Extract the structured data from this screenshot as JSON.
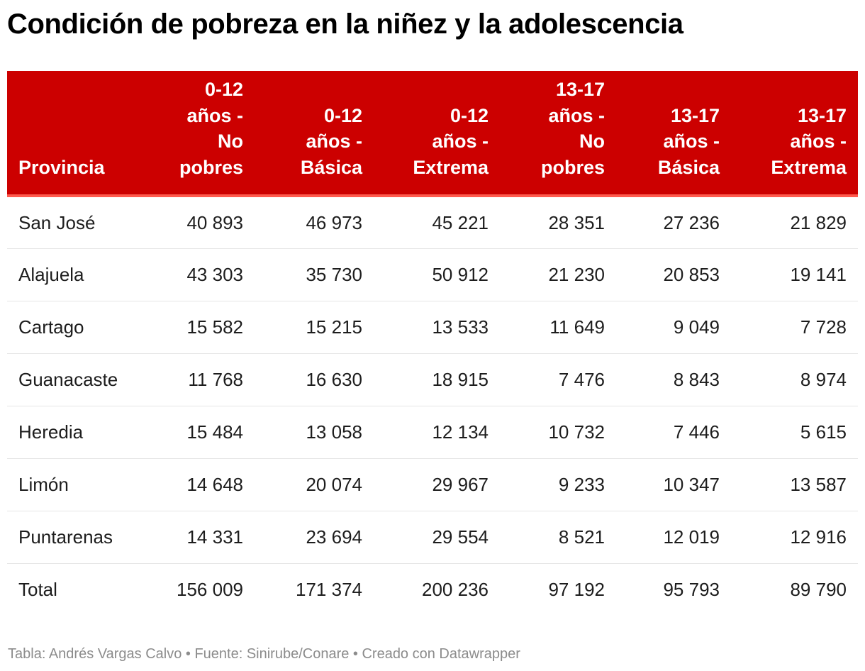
{
  "title": "Condición de pobreza en la niñez y la adolescencia",
  "colors": {
    "header_bg": "#cc0000",
    "header_text": "#ffffff",
    "header_rule": "#ff5a4e",
    "row_rule": "#e6e6e6",
    "footer_text": "#8c8c8c"
  },
  "table": {
    "headers": [
      [
        "Provincia"
      ],
      [
        "0-12",
        "años -",
        "No",
        "pobres"
      ],
      [
        "0-12",
        "años -",
        "Básica"
      ],
      [
        "0-12",
        "años -",
        "Extrema"
      ],
      [
        "13-17",
        "años -",
        "No",
        "pobres"
      ],
      [
        "13-17",
        "años -",
        "Básica"
      ],
      [
        "13-17",
        "años -",
        "Extrema"
      ]
    ],
    "rows": [
      [
        "San José",
        "40 893",
        "46 973",
        "45 221",
        "28 351",
        "27 236",
        "21 829"
      ],
      [
        "Alajuela",
        "43 303",
        "35 730",
        "50 912",
        "21 230",
        "20 853",
        "19 141"
      ],
      [
        "Cartago",
        "15 582",
        "15 215",
        "13 533",
        "11 649",
        "9 049",
        "7 728"
      ],
      [
        "Guanacaste",
        "11 768",
        "16 630",
        "18 915",
        "7 476",
        "8 843",
        "8 974"
      ],
      [
        "Heredia",
        "15 484",
        "13 058",
        "12 134",
        "10 732",
        "7 446",
        "5 615"
      ],
      [
        "Limón",
        "14 648",
        "20 074",
        "29 967",
        "9 233",
        "10 347",
        "13 587"
      ],
      [
        "Puntarenas",
        "14 331",
        "23 694",
        "29 554",
        "8 521",
        "12 019",
        "12 916"
      ],
      [
        "Total",
        "156 009",
        "171 374",
        "200 236",
        "97 192",
        "95 793",
        "89 790"
      ]
    ]
  },
  "footer": "Tabla: Andrés Vargas Calvo • Fuente: Sinirube/Conare • Creado con Datawrapper"
}
